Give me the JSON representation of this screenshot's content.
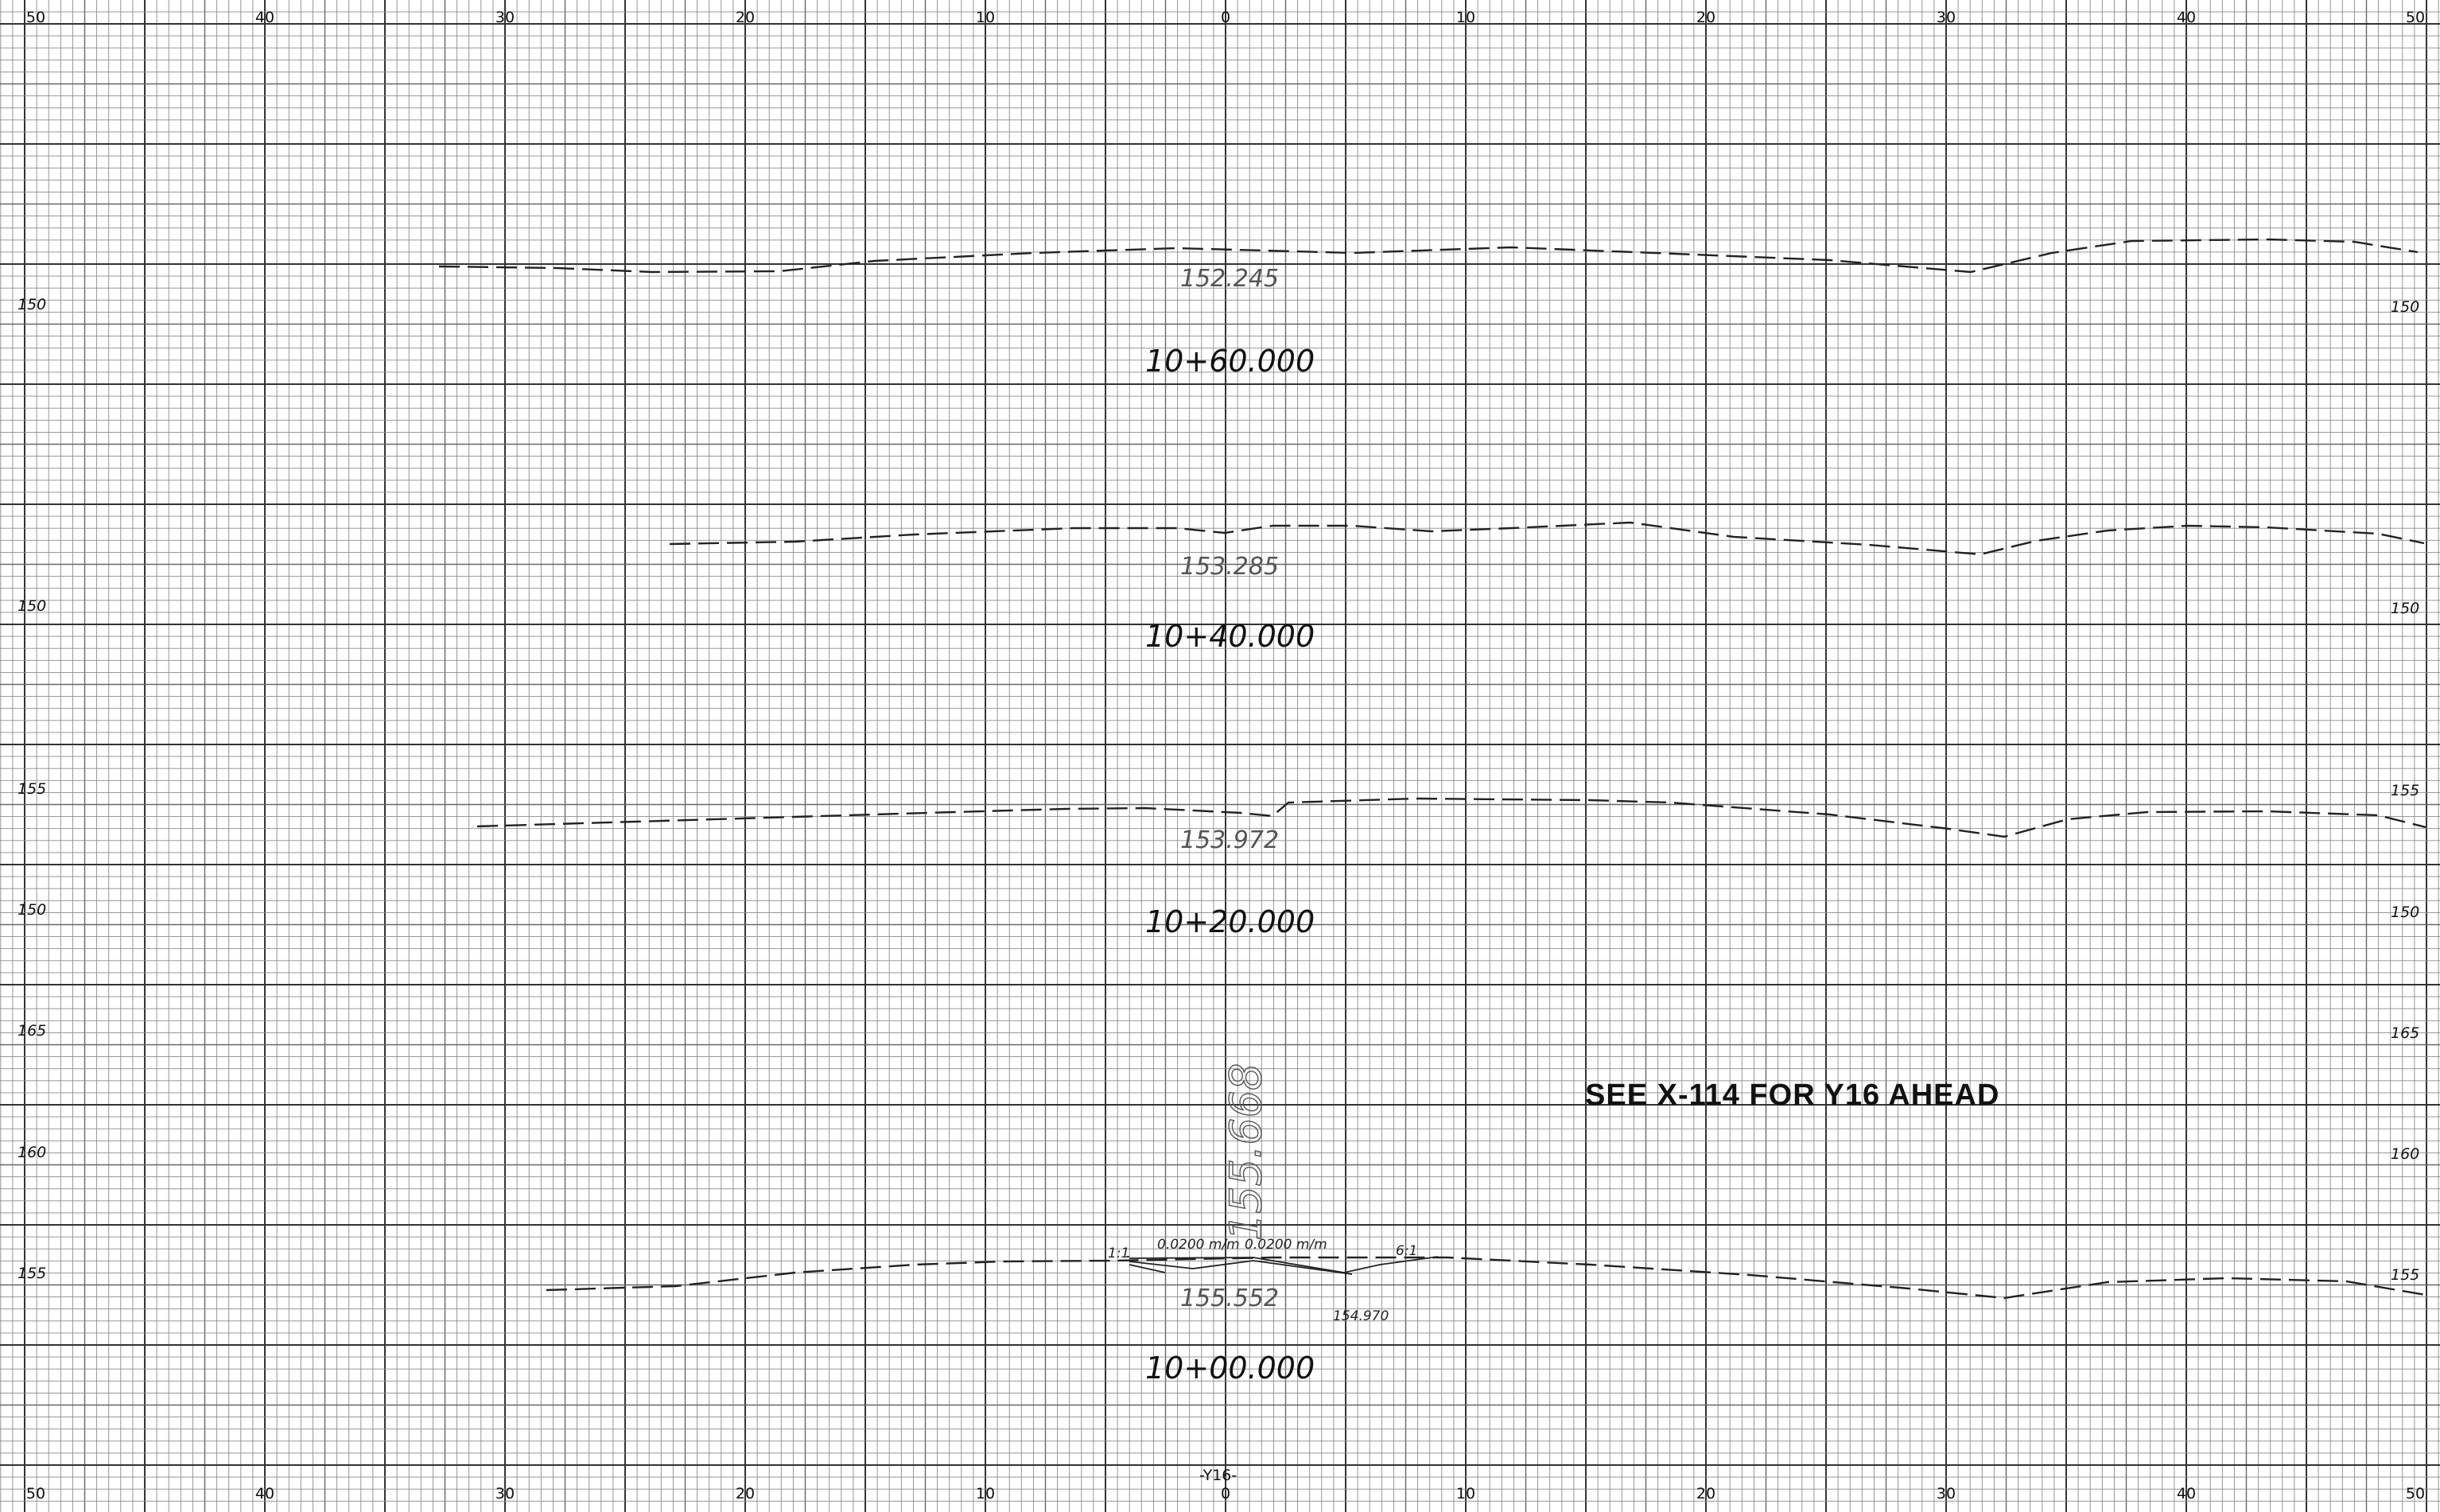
{
  "x_axis_labels": [
    "50",
    "40",
    "30",
    "20",
    "10",
    "0",
    "10",
    "20",
    "30",
    "40",
    "50"
  ],
  "sections": [
    {
      "station": "10+60.000",
      "grade_elevation": "152.245",
      "left_elevation_labels": [
        "150"
      ],
      "right_elevation_labels": [
        "150"
      ]
    },
    {
      "station": "10+40.000",
      "grade_elevation": "153.285",
      "left_elevation_labels": [
        "150"
      ],
      "right_elevation_labels": [
        "150"
      ]
    },
    {
      "station": "10+20.000",
      "grade_elevation": "153.972",
      "left_elevation_labels": [
        "155",
        "150"
      ],
      "right_elevation_labels": [
        "155",
        "150"
      ]
    },
    {
      "station": "10+00.000",
      "grade_elevation": "155.552",
      "side_elevation": "154.970",
      "vertical_elevation": "155.668",
      "slope_left": "0.0200 m/m",
      "slope_right": "0.0200 m/m",
      "slope_ratio_left": "1:1",
      "slope_ratio_right": "6:1",
      "left_elevation_labels": [
        "165",
        "160",
        "155"
      ],
      "right_elevation_labels": [
        "165",
        "160",
        "155"
      ]
    }
  ],
  "note": "SEE X-114 FOR Y16 AHEAD",
  "line_label": "-Y16-"
}
